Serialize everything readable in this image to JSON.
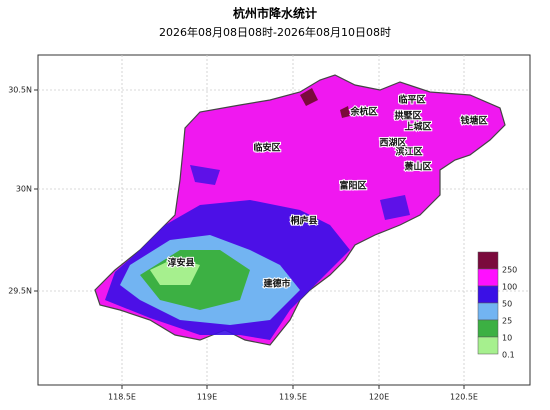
{
  "header": {
    "title": "杭州市降水统计",
    "subtitle": "2026年08月08日08时-2026年08月10日08时"
  },
  "axes": {
    "y_labels": [
      "30.5N",
      "30N",
      "29.5N"
    ],
    "x_labels": [
      "118.5E",
      "119E",
      "119.5E",
      "120E",
      "120.5E"
    ]
  },
  "districts": [
    "临平区",
    "余杭区",
    "拱墅区",
    "上城区",
    "钱塘区",
    "西湖区",
    "滨江区",
    "临安区",
    "富阳区",
    "萧山区",
    "桐庐县",
    "淳安县",
    "建德市"
  ],
  "legend": [
    {
      "label": "250",
      "color": "#7a0a3c"
    },
    {
      "label": "100",
      "color": "#ff10ff"
    },
    {
      "label": "50",
      "color": "#3a10e6"
    },
    {
      "label": "25",
      "color": "#72b4f2"
    },
    {
      "label": "10",
      "color": "#3cb043"
    },
    {
      "label": "0.1",
      "color": "#a6f08e"
    }
  ]
}
